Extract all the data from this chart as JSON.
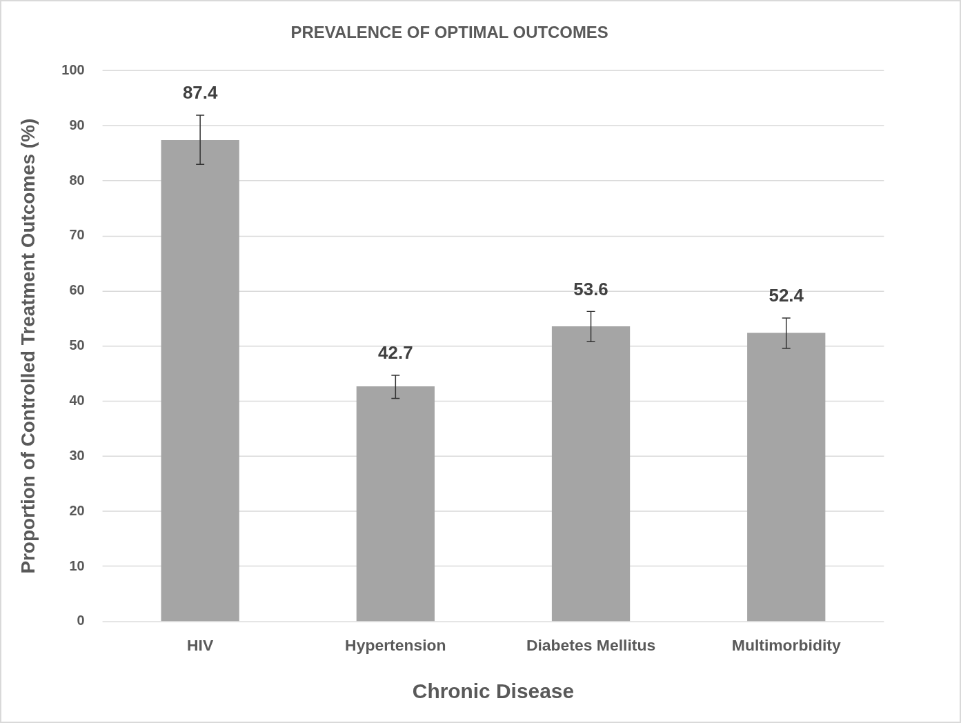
{
  "chart_data": {
    "type": "bar",
    "title": "PREVALENCE OF OPTIMAL OUTCOMES",
    "xlabel": "Chronic Disease",
    "ylabel": "Proportion of Controlled Treatment Outcomes (%)",
    "categories": [
      "HIV",
      "Hypertension",
      "Diabetes Mellitus",
      "Multimorbidity"
    ],
    "values": [
      87.4,
      42.7,
      53.6,
      52.4
    ],
    "errors": [
      [
        83.0,
        91.9
      ],
      [
        40.5,
        44.7
      ],
      [
        50.8,
        56.3
      ],
      [
        49.6,
        55.1
      ]
    ],
    "color": "#a5a5a5",
    "ylim": [
      0,
      100
    ],
    "yticks": [
      0,
      10,
      20,
      30,
      40,
      50,
      60,
      70,
      80,
      90,
      100
    ],
    "grid": "y",
    "legend": false,
    "data_labels": true
  }
}
